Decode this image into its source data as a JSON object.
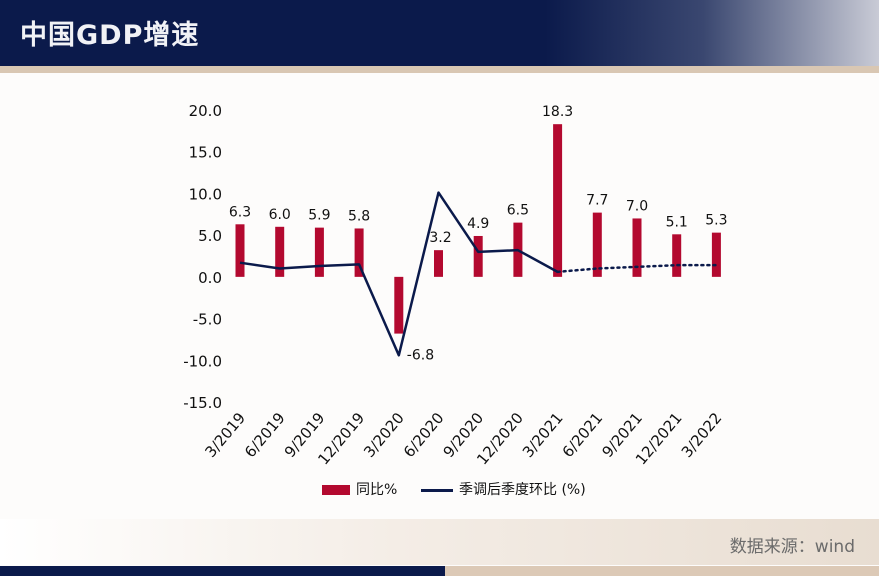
{
  "header": {
    "title": "中国GDP增速"
  },
  "footer": {
    "source": "数据来源：wind"
  },
  "colors": {
    "bar": "#b3092f",
    "line": "#0b1a4b",
    "header": "#0b1a4b",
    "accent": "#d9c7b3"
  },
  "chart_data": {
    "type": "bar",
    "categories": [
      "3/2019",
      "6/2019",
      "9/2019",
      "12/2019",
      "3/2020",
      "6/2020",
      "9/2020",
      "12/2020",
      "3/2021",
      "6/2021",
      "9/2021",
      "12/2021",
      "3/2022"
    ],
    "ylim": [
      -15,
      20
    ],
    "yticks": [
      "20.0",
      "15.0",
      "10.0",
      "5.0",
      "0.0",
      "-5.0",
      "-10.0",
      "-15.0"
    ],
    "series": [
      {
        "name": "同比%",
        "type": "bar",
        "values": [
          6.3,
          6.0,
          5.9,
          5.8,
          -6.8,
          3.2,
          4.9,
          6.5,
          18.3,
          7.7,
          7.0,
          5.1,
          5.3
        ],
        "labels": [
          "6.3",
          "6.0",
          "5.9",
          "5.8",
          "-6.8",
          "3.2",
          "4.9",
          "6.5",
          "18.3",
          "7.7",
          "7.0",
          "5.1",
          "5.3"
        ]
      },
      {
        "name": "季调后季度环比 (%)",
        "type": "line",
        "values": [
          1.7,
          1.0,
          1.3,
          1.5,
          -9.4,
          10.1,
          3.0,
          3.2,
          0.6,
          1.0,
          1.2,
          1.4,
          1.4
        ],
        "dotted_from_index": 8
      }
    ],
    "legend": "bottom-center",
    "grid": false
  }
}
